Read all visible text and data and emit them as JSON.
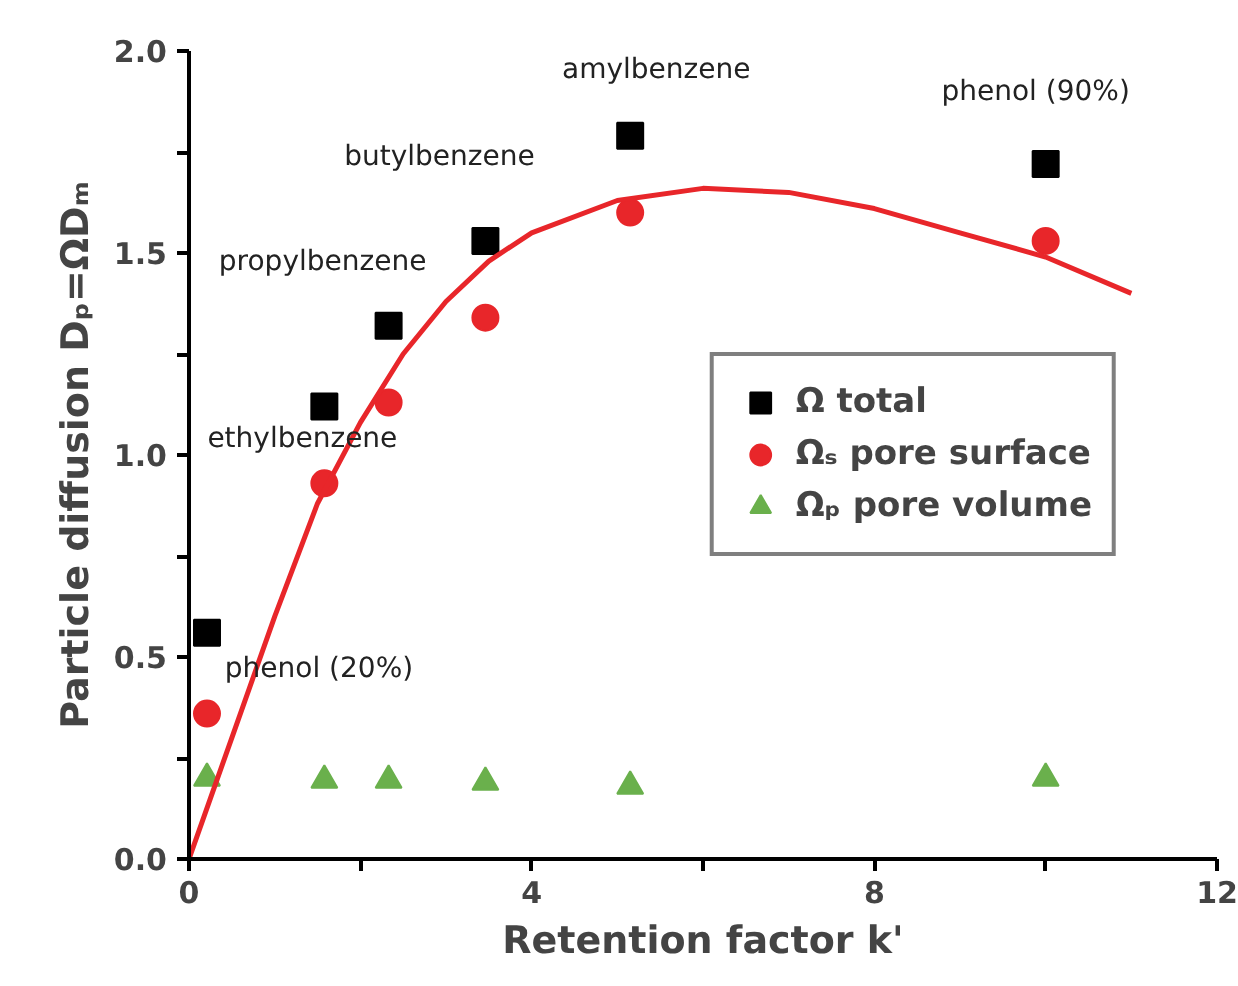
{
  "chart_data": {
    "type": "scatter",
    "xlabel": "Retention factor k'",
    "ylabel": "Particle diffusion Dₚ=ΩDₘ",
    "xlim": [
      0,
      12
    ],
    "ylim": [
      0,
      2.0
    ],
    "xticks": [
      0,
      {
        "value": 2,
        "label": null
      },
      4,
      {
        "value": 6,
        "label": null
      },
      8,
      {
        "value": 10,
        "label": null
      },
      12
    ],
    "yticks": [
      {
        "value": 0,
        "label": "0.0"
      },
      {
        "value": 0.25,
        "label": null
      },
      0.5,
      {
        "value": 0.75,
        "label": null
      },
      {
        "value": 1,
        "label": "1.0"
      },
      {
        "value": 1.25,
        "label": null
      },
      1.5,
      {
        "value": 1.75,
        "label": null
      },
      {
        "value": 2,
        "label": "2.0"
      }
    ],
    "grid": false,
    "legend": "right",
    "x": [
      0.21,
      1.58,
      2.33,
      3.46,
      5.15,
      10.0
    ],
    "series": [
      {
        "name": "Ω total",
        "marker": "square",
        "color": "#000000",
        "values": [
          0.56,
          1.12,
          1.32,
          1.53,
          1.79,
          1.72
        ]
      },
      {
        "name": "Ωₛ pore surface",
        "marker": "circle",
        "color": "#e8262a",
        "values": [
          0.36,
          0.93,
          1.13,
          1.34,
          1.6,
          1.53
        ]
      },
      {
        "name": "Ωₚ pore volume",
        "marker": "triangle",
        "color": "#6ab04c",
        "values": [
          0.2,
          0.195,
          0.195,
          0.19,
          0.18,
          0.2
        ]
      },
      {
        "type": "line",
        "marker": "none",
        "line_style": "solid",
        "color": "#e8262a",
        "x": [
          0,
          0.25,
          0.5,
          1,
          1.5,
          2,
          2.5,
          3,
          3.5,
          4,
          5,
          6,
          7,
          8,
          9,
          10,
          11
        ],
        "values": [
          0,
          0.15,
          0.3,
          0.6,
          0.88,
          1.08,
          1.25,
          1.38,
          1.48,
          1.55,
          1.63,
          1.66,
          1.65,
          1.61,
          1.55,
          1.49,
          1.4
        ]
      }
    ],
    "annotations": [
      {
        "text": "phenol (20%)",
        "x": 0.21,
        "y": 0.56
      },
      {
        "text": "ethylbenzene",
        "x": 1.58,
        "y": 1.12
      },
      {
        "text": "propylbenzene",
        "x": 2.33,
        "y": 1.32
      },
      {
        "text": "butylbenzene",
        "x": 3.46,
        "y": 1.53
      },
      {
        "text": "amylbenzene",
        "x": 5.15,
        "y": 1.79
      },
      {
        "text": "phenol (90%)",
        "x": 10.0,
        "y": 1.72
      }
    ]
  }
}
